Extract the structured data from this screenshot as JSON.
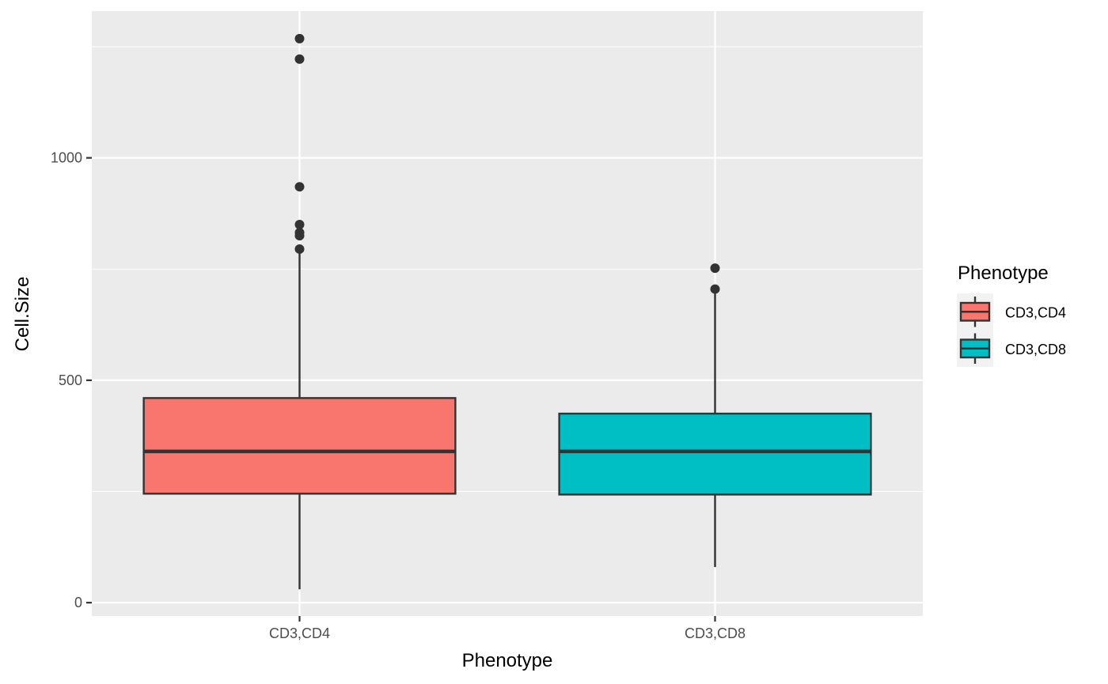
{
  "chart_data": {
    "type": "boxplot",
    "xlabel": "Phenotype",
    "ylabel": "Cell.Size",
    "ylim": [
      -30,
      1330
    ],
    "y_ticks": [
      0,
      500,
      1000
    ],
    "y_minor_ticks": [
      250,
      750,
      1250
    ],
    "categories": [
      "CD3,CD4",
      "CD3,CD8"
    ],
    "boxes": [
      {
        "category": "CD3,CD4",
        "fill": "#F8766D",
        "whisker_low": 30,
        "q1": 245,
        "median": 340,
        "q3": 460,
        "whisker_high": 785,
        "outliers": [
          795,
          825,
          832,
          850,
          935,
          1222,
          1268
        ]
      },
      {
        "category": "CD3,CD8",
        "fill": "#00BFC4",
        "whisker_low": 80,
        "q1": 243,
        "median": 340,
        "q3": 425,
        "whisker_high": 700,
        "outliers": [
          705,
          752
        ]
      }
    ],
    "grid": true,
    "panel_background": "#EBEBEB",
    "gridline_color": "#FFFFFF",
    "outline_color": "#333333",
    "legend": {
      "title": "Phenotype",
      "placement": "right",
      "entries": [
        {
          "label": "CD3,CD4",
          "color": "#F8766D"
        },
        {
          "label": "CD3,CD8",
          "color": "#00BFC4"
        }
      ]
    }
  }
}
